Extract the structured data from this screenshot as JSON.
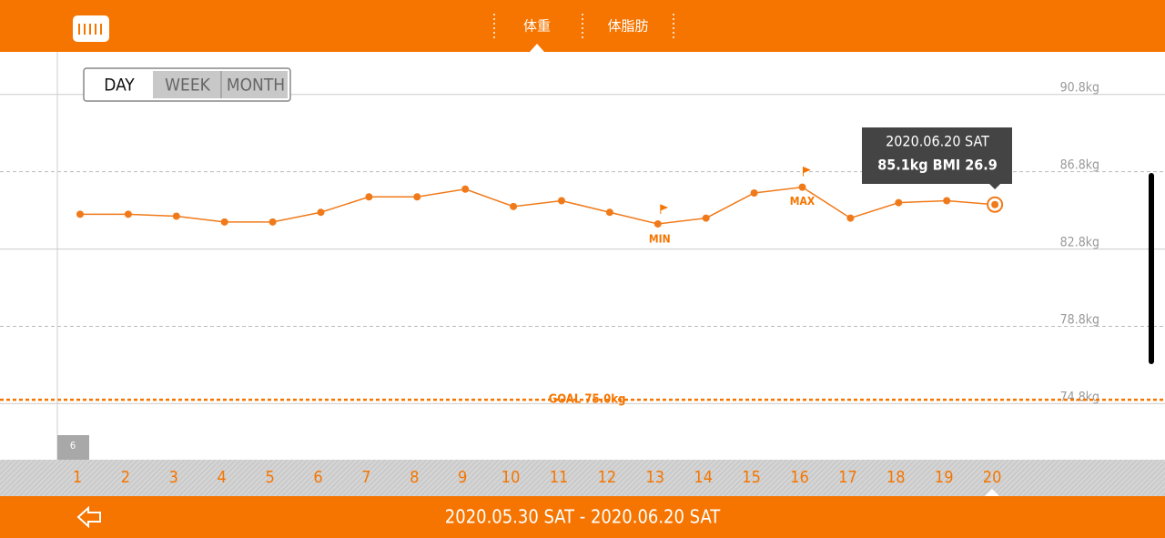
{
  "tabs": [
    "体重",
    "体脂肪"
  ],
  "range_buttons": [
    "DAY",
    "WEEK",
    "MONTH"
  ],
  "month_label": "6",
  "date_range": "2020.05.30 SAT - 2020.06.20 SAT",
  "chart_data": {
    "type": "line",
    "categories": [
      "1",
      "2",
      "3",
      "4",
      "5",
      "6",
      "7",
      "8",
      "9",
      "10",
      "11",
      "12",
      "13",
      "14",
      "15",
      "16",
      "17",
      "18",
      "19",
      "20"
    ],
    "values": [
      84.6,
      84.6,
      84.5,
      84.2,
      84.2,
      84.7,
      85.5,
      85.5,
      85.9,
      85.0,
      85.3,
      84.7,
      84.1,
      84.4,
      85.7,
      86.0,
      84.4,
      85.2,
      85.3,
      85.1
    ],
    "color": "#f07a1a",
    "ylim": [
      71.9,
      93.0
    ],
    "yticks": [
      {
        "value": 90.8,
        "label": "90.8kg"
      },
      {
        "value": 86.8,
        "label": "86.8kg"
      },
      {
        "value": 82.8,
        "label": "82.8kg"
      },
      {
        "value": 78.8,
        "label": "78.8kg"
      },
      {
        "value": 74.8,
        "label": "74.8kg"
      }
    ],
    "grid": true,
    "goal": {
      "value": 75.0,
      "label": "GOAL 75.0kg"
    },
    "min_label": "MIN",
    "max_label": "MAX",
    "tooltip": {
      "date": "2020.06.20 SAT",
      "detail": "85.1kg  BMI 26.9"
    }
  }
}
